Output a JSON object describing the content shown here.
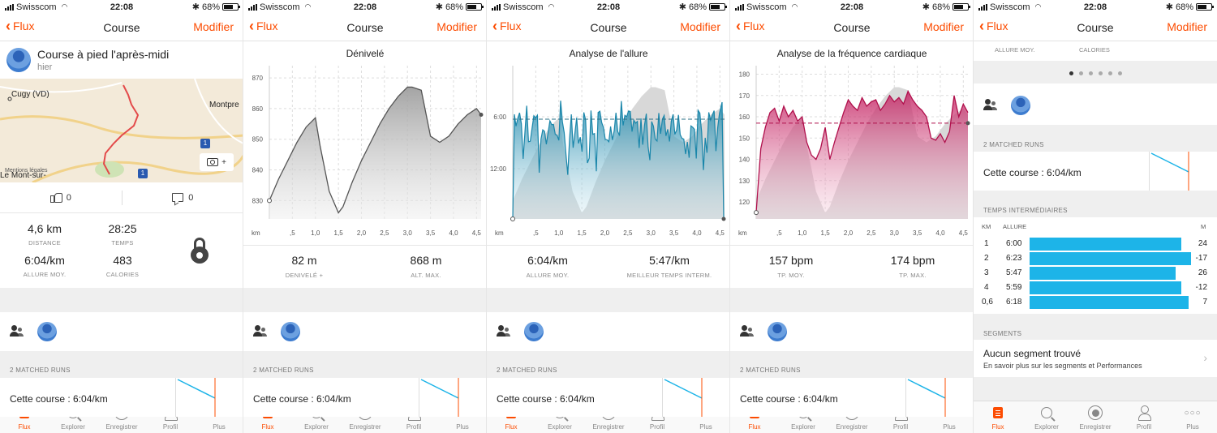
{
  "status": {
    "carrier": "Swisscom",
    "time": "22:08",
    "battery": "68%"
  },
  "nav": {
    "back_label": "Flux",
    "title": "Course",
    "edit_label": "Modifier"
  },
  "tabs": [
    {
      "label": "Flux",
      "icon": "flux-icon",
      "active": true
    },
    {
      "label": "Explorer",
      "icon": "search-icon",
      "active": false
    },
    {
      "label": "Enregistrer",
      "icon": "record-icon",
      "active": false
    },
    {
      "label": "Profil",
      "icon": "profile-icon",
      "active": false
    },
    {
      "label": "Plus",
      "icon": "more-icon",
      "active": false
    }
  ],
  "colors": {
    "accent": "#fc4c02",
    "pace": "#1a86aa",
    "heart": "#c2185b",
    "split_bar": "#1db4e8"
  },
  "activity": {
    "title": "Course à pied l'après-midi",
    "when": "hier",
    "map_labels": {
      "town1": "Cugy (VD)",
      "town2": "Montpre",
      "town3": "Le Mont-sur-",
      "badge": "1",
      "attribution": "Mentions légales"
    },
    "camera_plus": "+",
    "kudos_count": "0",
    "comment_count": "0",
    "stats": [
      {
        "value": "4,6 km",
        "label": "DISTANCE"
      },
      {
        "value": "28:25",
        "label": "TEMPS"
      },
      {
        "value": "6:04/km",
        "label": "ALLURE MOY."
      },
      {
        "value": "483",
        "label": "CALORIES"
      }
    ]
  },
  "common": {
    "matched_label": "2 MATCHED RUNS",
    "matched_text": "Cette course : 6:04/km"
  },
  "charts": {
    "elevation": {
      "title": "Dénivelé",
      "stats": [
        {
          "value": "82 m",
          "label": "DENIVELÉ +"
        },
        {
          "value": "868 m",
          "label": "ALT. MAX."
        }
      ]
    },
    "pace": {
      "title": "Analyse de l'allure",
      "stats": [
        {
          "value": "6:04/km",
          "label": "ALLURE MOY."
        },
        {
          "value": "5:47/km",
          "label": "MEILLEUR TEMPS INTERM."
        }
      ]
    },
    "heart": {
      "title": "Analyse de la fréquence cardiaque",
      "stats": [
        {
          "value": "157 bpm",
          "label": "TP. MOY."
        },
        {
          "value": "174 bpm",
          "label": "TP. MAX."
        }
      ]
    }
  },
  "chart_data": [
    {
      "type": "area",
      "title": "Dénivelé",
      "xlabel": "km",
      "x_ticks": [
        ",5",
        "1,0",
        "1,5",
        "2,0",
        "2,5",
        "3,0",
        "3,5",
        "4,0",
        "4,5"
      ],
      "y_ticks": [
        "830",
        "840",
        "850",
        "860",
        "870"
      ],
      "ylim": [
        824,
        874
      ],
      "xlim": [
        0,
        4.6
      ],
      "x": [
        0,
        0.2,
        0.4,
        0.6,
        0.8,
        1.0,
        1.1,
        1.3,
        1.5,
        1.6,
        1.8,
        2.0,
        2.2,
        2.4,
        2.6,
        2.8,
        3.0,
        3.1,
        3.3,
        3.5,
        3.7,
        3.9,
        4.1,
        4.3,
        4.5,
        4.6
      ],
      "y": [
        830,
        837,
        843,
        849,
        854,
        857,
        848,
        833,
        826,
        828,
        836,
        843,
        849,
        855,
        860,
        864,
        867,
        867,
        866,
        851,
        849,
        851,
        855,
        858,
        860,
        858
      ]
    },
    {
      "type": "line",
      "title": "Analyse de l'allure",
      "xlabel": "km",
      "x_ticks": [
        ",5",
        "1,0",
        "1,5",
        "2,0",
        "2,5",
        "3,0",
        "3,5",
        "4,0",
        "4,5"
      ],
      "y_ticks": [
        "6:00",
        "12:00"
      ],
      "y_reference": "6:04",
      "xlim": [
        0,
        4.6
      ]
    },
    {
      "type": "area",
      "title": "Analyse de la fréquence cardiaque",
      "xlabel": "km",
      "x_ticks": [
        ",5",
        "1,0",
        "1,5",
        "2,0",
        "2,5",
        "3,0",
        "3,5",
        "4,0",
        "4,5"
      ],
      "y_ticks": [
        "120",
        "130",
        "140",
        "150",
        "160",
        "170",
        "180"
      ],
      "ylim": [
        112,
        184
      ],
      "xlim": [
        0,
        4.6
      ],
      "y_reference": 157,
      "x": [
        0,
        0.1,
        0.2,
        0.3,
        0.4,
        0.5,
        0.6,
        0.7,
        0.8,
        0.9,
        1.0,
        1.1,
        1.2,
        1.3,
        1.4,
        1.5,
        1.6,
        1.7,
        1.8,
        1.9,
        2.0,
        2.1,
        2.2,
        2.3,
        2.4,
        2.5,
        2.6,
        2.7,
        2.8,
        2.9,
        3.0,
        3.1,
        3.2,
        3.3,
        3.4,
        3.5,
        3.6,
        3.7,
        3.8,
        3.9,
        4.0,
        4.1,
        4.2,
        4.3,
        4.4,
        4.5,
        4.6
      ],
      "y": [
        115,
        145,
        155,
        162,
        164,
        158,
        165,
        160,
        163,
        158,
        160,
        148,
        142,
        140,
        145,
        155,
        140,
        148,
        155,
        162,
        168,
        165,
        163,
        169,
        165,
        167,
        168,
        163,
        166,
        170,
        167,
        169,
        166,
        172,
        168,
        165,
        163,
        160,
        150,
        149,
        152,
        148,
        153,
        170,
        160,
        166,
        162
      ]
    },
    {
      "type": "bar",
      "title": "",
      "categories": [
        "1",
        "2",
        "3",
        "4",
        "0,6"
      ],
      "series": [
        {
          "values": [
            360,
            383,
            347,
            359,
            378
          ]
        }
      ],
      "pace_labels": [
        "6:00",
        "6:23",
        "5:47",
        "5:59",
        "6:18"
      ],
      "elevation_m": [
        "24",
        "-17",
        "26",
        "-12",
        "7"
      ]
    }
  ],
  "screen5": {
    "top_labels": [
      "ALLURE MOY.",
      "CALORIES"
    ],
    "splits_label": "TEMPS INTERMÉDIAIRES",
    "splits_headers": [
      "KM",
      "ALLURE",
      "M"
    ],
    "splits": [
      {
        "km": "1",
        "pace": "6:00",
        "elev": "24"
      },
      {
        "km": "2",
        "pace": "6:23",
        "elev": "-17"
      },
      {
        "km": "3",
        "pace": "5:47",
        "elev": "26"
      },
      {
        "km": "4",
        "pace": "5:59",
        "elev": "-12"
      },
      {
        "km": "0,6",
        "pace": "6:18",
        "elev": "7"
      }
    ],
    "segments_label": "SEGMENTS",
    "segments_title": "Aucun segment trouvé",
    "segments_sub": "En savoir plus sur les segments et Performances"
  }
}
